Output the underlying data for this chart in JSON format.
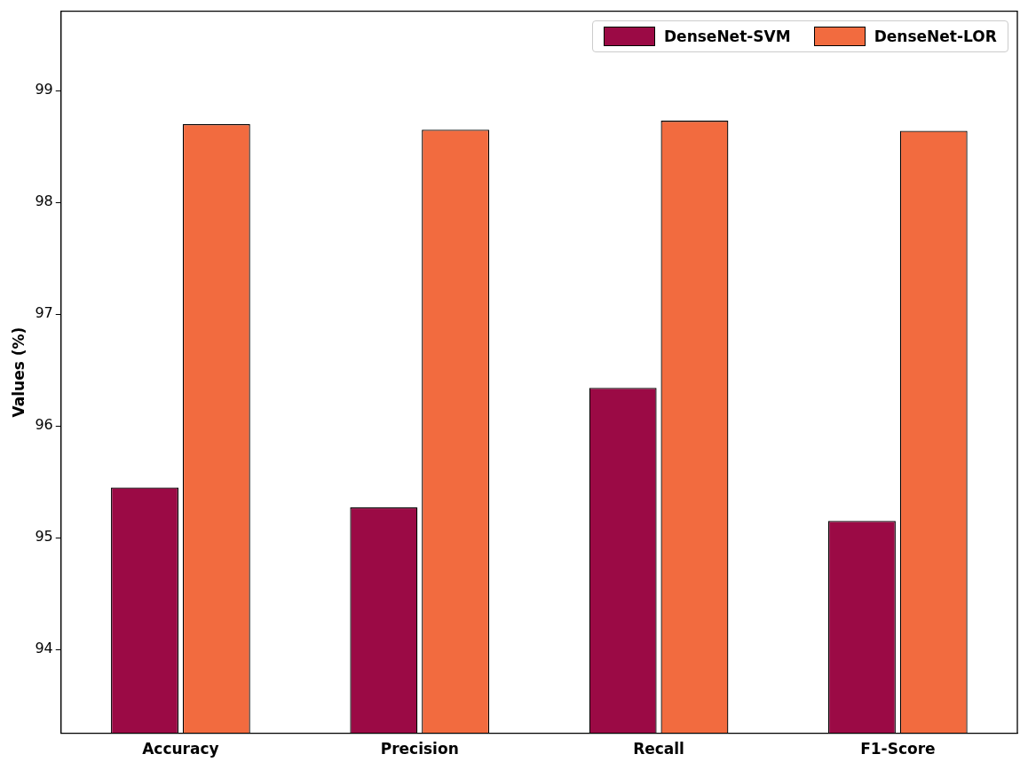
{
  "chart_data": {
    "type": "bar",
    "ylabel": "Values (%)",
    "categories": [
      "Accuracy",
      "Precision",
      "Recall",
      "F1-Score"
    ],
    "series": [
      {
        "name": "DenseNet-SVM",
        "color": "#9b0a45",
        "values": [
          95.45,
          95.27,
          96.34,
          95.15
        ]
      },
      {
        "name": "DenseNet-LOR",
        "color": "#f26b3f",
        "values": [
          98.7,
          98.65,
          98.73,
          98.64
        ]
      }
    ],
    "ylim": [
      93.25,
      99.71
    ],
    "yticks": [
      94,
      95,
      96,
      97,
      98,
      99
    ],
    "grid": false,
    "legend": "top right"
  }
}
